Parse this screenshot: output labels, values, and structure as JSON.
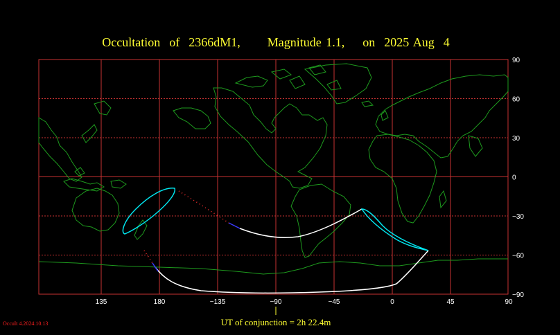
{
  "title": "Occultation  of  2366dM1,      Magnitude 1.1,    on  2025 Aug  4",
  "footer": "UT of conjunction =  2h 22.4m",
  "version": "Occult 4.2024.10.13",
  "colors": {
    "background": "#000000",
    "grid": "#c83232",
    "coast": "#1e9b1e",
    "title": "#ffff33",
    "central_line": "#ffffff",
    "limit_curve": "#00e5ee",
    "daylight_segment": "#3a3aff",
    "partial_dots": "#ff3030"
  },
  "map": {
    "projection": "equirectangular",
    "center_longitude": -90,
    "lon_ticks": [
      135,
      180,
      -135,
      -90,
      -45,
      0,
      45,
      90
    ],
    "lon_tick_labels": [
      "135",
      "180",
      "−135",
      "−90",
      "−45",
      "0",
      "45",
      "90"
    ],
    "lat_ticks": [
      90,
      60,
      30,
      0,
      -30,
      -60,
      -90
    ],
    "lat_tick_labels": [
      "90",
      "60",
      "30",
      "0",
      "−30",
      "−60",
      "−90"
    ]
  }
}
